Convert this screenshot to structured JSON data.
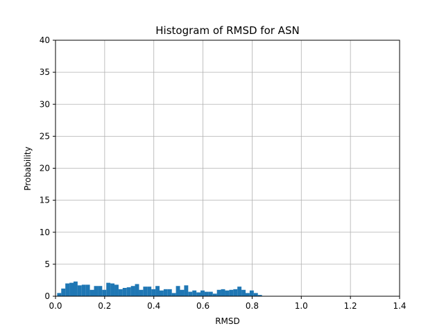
{
  "chart_data": {
    "type": "bar",
    "title": "Histogram of RMSD for ASN",
    "xlabel": "RMSD",
    "ylabel": "Probability",
    "xlim": [
      0.0,
      1.4
    ],
    "ylim": [
      0,
      40
    ],
    "grid": true,
    "bar_color": "#1f77b4",
    "xticks": [
      "0.0",
      "0.2",
      "0.4",
      "0.6",
      "0.8",
      "1.0",
      "1.2",
      "1.4"
    ],
    "yticks": [
      "0",
      "5",
      "10",
      "15",
      "20",
      "25",
      "30",
      "35",
      "40"
    ],
    "bin_width": 0.0167,
    "bin_starts": [
      0.0067,
      0.0233,
      0.04,
      0.0567,
      0.0733,
      0.09,
      0.1067,
      0.1233,
      0.14,
      0.1567,
      0.1733,
      0.19,
      0.2067,
      0.2233,
      0.24,
      0.2567,
      0.2733,
      0.29,
      0.3067,
      0.3233,
      0.34,
      0.3567,
      0.3733,
      0.39,
      0.4067,
      0.4233,
      0.44,
      0.4567,
      0.4733,
      0.49,
      0.5067,
      0.5233,
      0.54,
      0.5567,
      0.5733,
      0.59,
      0.6067,
      0.6233,
      0.64,
      0.6567,
      0.6733,
      0.69,
      0.7067,
      0.7233,
      0.74,
      0.7567,
      0.7733,
      0.79,
      0.8067,
      0.8233
    ],
    "values": [
      0.5,
      1.2,
      2.0,
      2.1,
      2.3,
      1.7,
      1.8,
      1.8,
      1.0,
      1.6,
      1.6,
      1.0,
      2.1,
      2.0,
      1.8,
      1.1,
      1.3,
      1.4,
      1.6,
      1.9,
      1.0,
      1.5,
      1.5,
      1.1,
      1.6,
      0.9,
      1.1,
      1.1,
      0.5,
      1.6,
      1.0,
      1.7,
      0.7,
      0.9,
      0.6,
      0.9,
      0.7,
      0.7,
      0.4,
      1.0,
      1.1,
      0.9,
      1.0,
      1.1,
      1.5,
      1.0,
      0.5,
      0.9,
      0.5,
      0.2
    ]
  }
}
